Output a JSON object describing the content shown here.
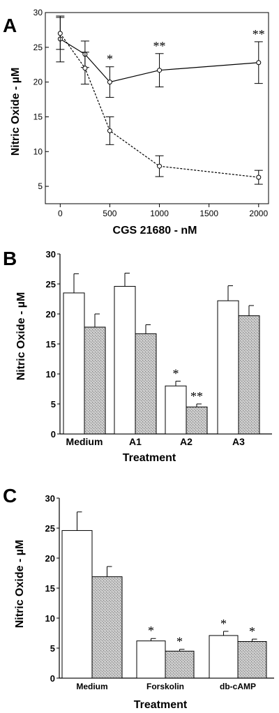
{
  "chart_data": [
    {
      "panel": "A",
      "type": "line",
      "xlabel": "CGS 21680 - nM",
      "ylabel": "Nitric Oxide - µM",
      "xlim": [
        -150,
        2100
      ],
      "ylim": [
        2.5,
        30
      ],
      "xticks": [
        0,
        500,
        1000,
        1500,
        2000
      ],
      "yticks": [
        5,
        10,
        15,
        20,
        25,
        30
      ],
      "series": [
        {
          "style": "solid",
          "x": [
            0,
            250,
            500,
            1000,
            2000
          ],
          "y": [
            26.2,
            24.0,
            20.0,
            21.7,
            22.8
          ],
          "err": [
            3.3,
            1.9,
            2.2,
            2.4,
            3.0
          ],
          "sig": [
            "",
            "",
            "*",
            "**",
            "**"
          ]
        },
        {
          "style": "dashed",
          "x": [
            0,
            250,
            500,
            1000,
            2000
          ],
          "y": [
            27.0,
            22.0,
            13.0,
            7.9,
            6.3
          ],
          "err": [
            2.3,
            2.3,
            2.0,
            1.5,
            1.0
          ],
          "sig": [
            "",
            "",
            "",
            "",
            ""
          ]
        }
      ]
    },
    {
      "panel": "B",
      "type": "bar",
      "xlabel": "Treatment",
      "ylabel": "Nitric Oxide - µM",
      "ylim": [
        0,
        30
      ],
      "yticks": [
        0,
        5,
        10,
        15,
        20,
        25,
        30
      ],
      "categories": [
        "Medium",
        "A1",
        "A2",
        "A3"
      ],
      "series": [
        {
          "fill": "white",
          "values": [
            23.5,
            24.6,
            8.0,
            22.2
          ],
          "err": [
            3.2,
            2.2,
            0.8,
            2.5
          ],
          "sig": [
            "",
            "",
            "*",
            ""
          ]
        },
        {
          "fill": "stippled",
          "values": [
            17.8,
            16.7,
            4.5,
            19.7
          ],
          "err": [
            2.2,
            1.5,
            0.5,
            1.7
          ],
          "sig": [
            "",
            "",
            "**",
            ""
          ]
        }
      ]
    },
    {
      "panel": "C",
      "type": "bar",
      "xlabel": "Treatment",
      "ylabel": "Nitric Oxide - µM",
      "ylim": [
        0,
        30
      ],
      "yticks": [
        0,
        5,
        10,
        15,
        20,
        25,
        30
      ],
      "categories": [
        "Medium",
        "Forskolin",
        "db-cAMP"
      ],
      "series": [
        {
          "fill": "white",
          "values": [
            24.6,
            6.2,
            7.1
          ],
          "err": [
            3.1,
            0.4,
            0.7
          ],
          "sig": [
            "",
            "*",
            "*"
          ]
        },
        {
          "fill": "stippled",
          "values": [
            16.9,
            4.5,
            6.1
          ],
          "err": [
            1.7,
            0.3,
            0.4
          ],
          "sig": [
            "",
            "*",
            "*"
          ]
        }
      ]
    }
  ]
}
